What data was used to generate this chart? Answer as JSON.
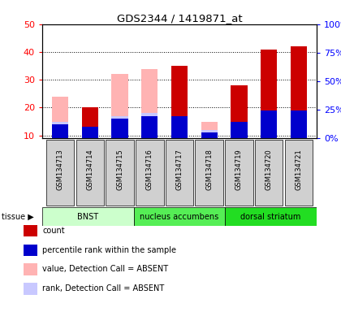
{
  "title": "GDS2344 / 1419871_at",
  "samples": [
    "GSM134713",
    "GSM134714",
    "GSM134715",
    "GSM134716",
    "GSM134717",
    "GSM134718",
    "GSM134719",
    "GSM134720",
    "GSM134721"
  ],
  "tissue_groups": [
    {
      "label": "BNST",
      "start": 0,
      "end": 3,
      "color": "#ccffcc"
    },
    {
      "label": "nucleus accumbens",
      "start": 3,
      "end": 6,
      "color": "#55ee55"
    },
    {
      "label": "dorsal striatum",
      "start": 6,
      "end": 9,
      "color": "#22dd22"
    }
  ],
  "count_values": [
    0,
    20,
    0,
    0,
    35,
    0,
    28,
    41,
    42
  ],
  "percentile_rank": [
    14,
    13,
    16,
    17,
    17,
    11,
    15,
    19,
    19
  ],
  "absent_value": [
    24,
    0,
    32,
    34,
    0,
    15,
    0,
    0,
    0
  ],
  "absent_rank": [
    15,
    0,
    17,
    18,
    0,
    12,
    0,
    0,
    0
  ],
  "ylim_left": [
    9,
    50
  ],
  "ylim_right": [
    0,
    100
  ],
  "yticks_left": [
    10,
    20,
    30,
    40,
    50
  ],
  "yticks_right": [
    0,
    25,
    50,
    75,
    100
  ],
  "ytick_labels_right": [
    "0%",
    "25%",
    "50%",
    "75%",
    "100%"
  ],
  "color_count": "#cc0000",
  "color_percentile": "#0000cc",
  "color_absent_value": "#ffb3b3",
  "color_absent_rank": "#c8c8ff",
  "bar_width": 0.55,
  "legend_items": [
    {
      "color": "#cc0000",
      "label": "count"
    },
    {
      "color": "#0000cc",
      "label": "percentile rank within the sample"
    },
    {
      "color": "#ffb3b3",
      "label": "value, Detection Call = ABSENT"
    },
    {
      "color": "#c8c8ff",
      "label": "rank, Detection Call = ABSENT"
    }
  ]
}
